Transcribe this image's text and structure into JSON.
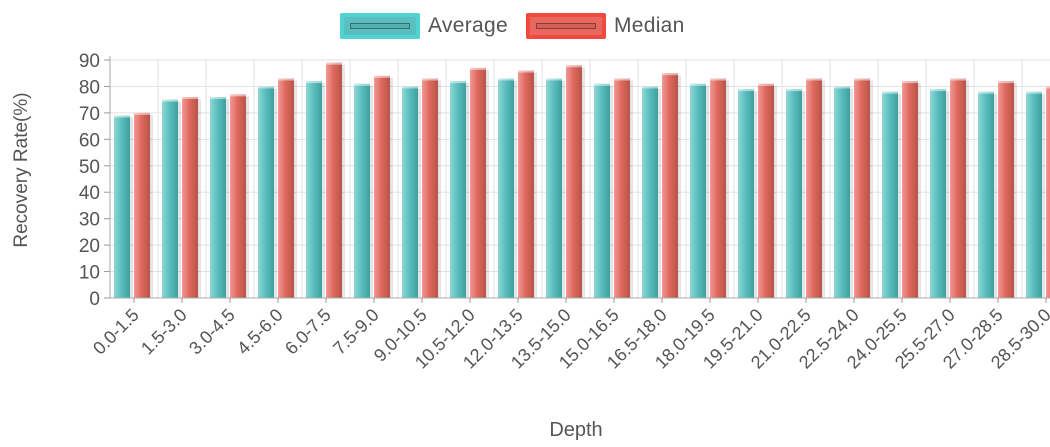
{
  "legend": {
    "items": [
      {
        "label": "Average",
        "color": "#5bbfbf"
      },
      {
        "label": "Median",
        "color": "#e8685f"
      }
    ]
  },
  "chart_data": {
    "type": "bar",
    "xlabel": "Depth",
    "ylabel": "Recovery Rate(%)",
    "ylim": [
      0,
      90
    ],
    "yticks": [
      0,
      10,
      20,
      30,
      40,
      50,
      60,
      70,
      80,
      90
    ],
    "grid": true,
    "legend_position": "top",
    "categories": [
      "0.0-1.5",
      "1.5-3.0",
      "3.0-4.5",
      "4.5-6.0",
      "6.0-7.5",
      "7.5-9.0",
      "9.0-10.5",
      "10.5-12.0",
      "12.0-13.5",
      "13.5-15.0",
      "15.0-16.5",
      "16.5-18.0",
      "18.0-19.5",
      "19.5-21.0",
      "21.0-22.5",
      "22.5-24.0",
      "24.0-25.5",
      "25.5-27.0",
      "27.0-28.5",
      "28.5-30.0"
    ],
    "series": [
      {
        "name": "Average",
        "color": "#5bbfbf",
        "values": [
          69,
          75,
          76,
          80,
          82,
          81,
          80,
          82,
          83,
          83,
          81,
          80,
          81,
          79,
          79,
          80,
          78,
          79,
          78,
          78
        ]
      },
      {
        "name": "Median",
        "color": "#e8685f",
        "values": [
          70,
          76,
          77,
          83,
          89,
          84,
          83,
          87,
          86,
          88,
          83,
          85,
          83,
          81,
          83,
          83,
          82,
          83,
          82,
          80
        ]
      }
    ]
  }
}
